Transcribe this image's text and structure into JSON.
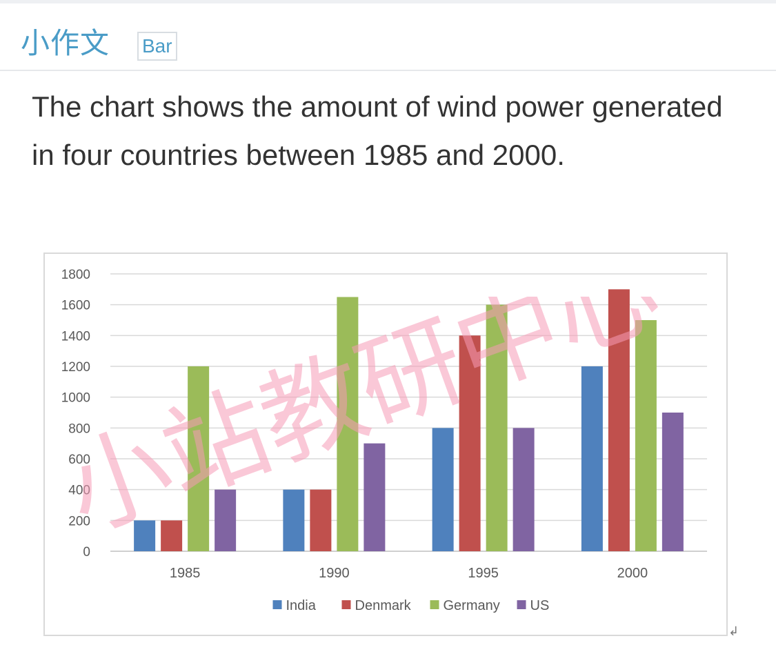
{
  "header": {
    "title": "小作文",
    "tag": "Bar"
  },
  "prompt": "The chart shows the amount of wind power generated in four countries between 1985 and 2000.",
  "watermark": "小站教研中心",
  "colors": {
    "India": "#4f81bd",
    "Denmark": "#c0504d",
    "Germany": "#9bbb59",
    "US": "#8064a2",
    "accent": "#4a9cc7",
    "watermark": "#f59ab7"
  },
  "chart_data": {
    "type": "bar",
    "title": "",
    "xlabel": "",
    "ylabel": "",
    "categories": [
      "1985",
      "1990",
      "1995",
      "2000"
    ],
    "series": [
      {
        "name": "India",
        "color": "#4f81bd",
        "values": [
          200,
          400,
          800,
          1200
        ]
      },
      {
        "name": "Denmark",
        "color": "#c0504d",
        "values": [
          200,
          400,
          1400,
          1700
        ]
      },
      {
        "name": "Germany",
        "color": "#9bbb59",
        "values": [
          1200,
          1650,
          1600,
          1500
        ]
      },
      {
        "name": "US",
        "color": "#8064a2",
        "values": [
          400,
          700,
          800,
          900
        ]
      }
    ],
    "ylim": [
      0,
      1800
    ],
    "yticks": [
      0,
      200,
      400,
      600,
      800,
      1000,
      1200,
      1400,
      1600,
      1800
    ],
    "grid": true,
    "legend": "bottom"
  }
}
